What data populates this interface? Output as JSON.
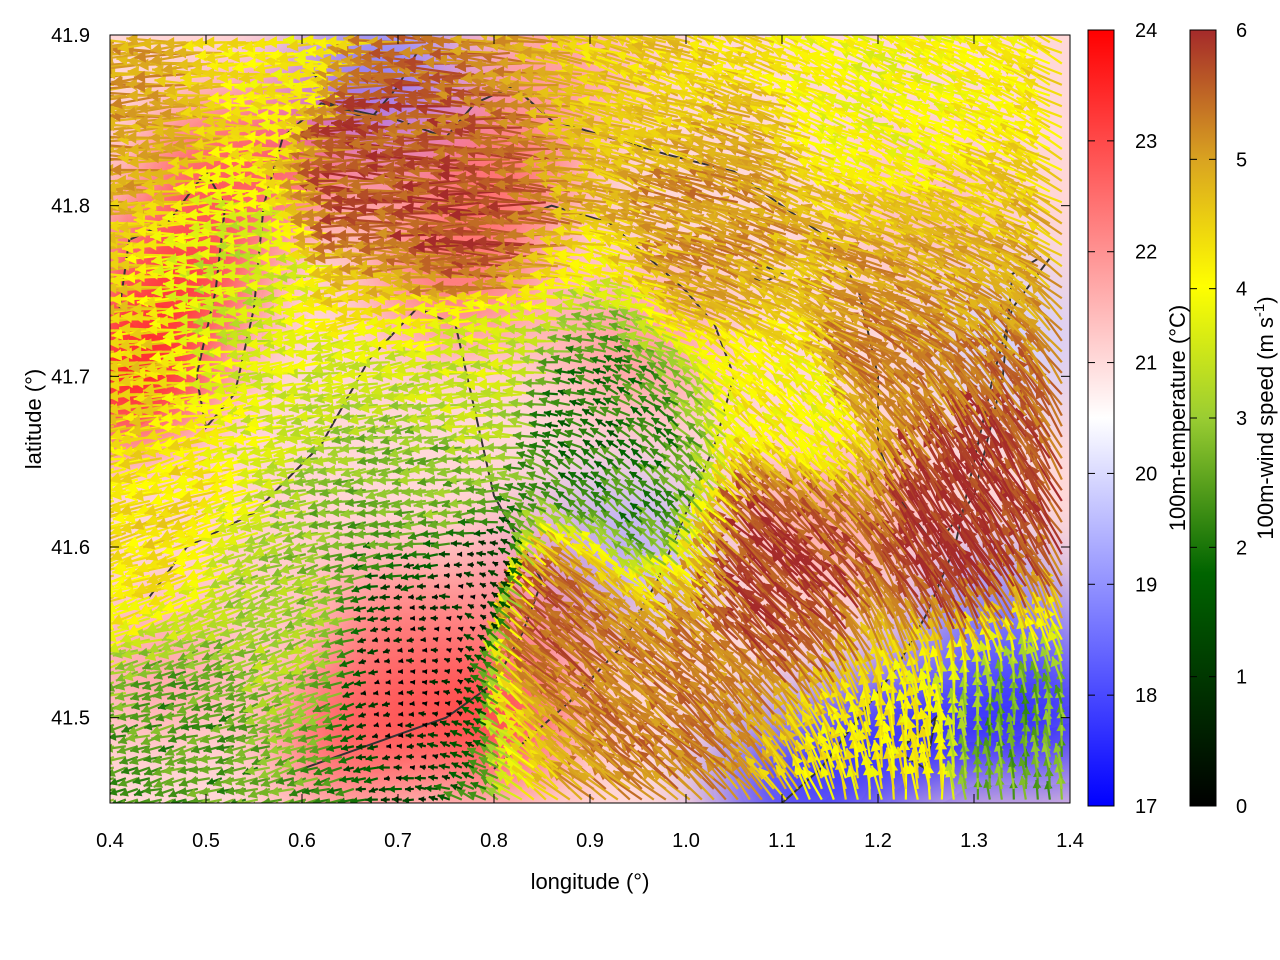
{
  "chart_data": {
    "type": "heatmap",
    "title": "",
    "xlabel": "longitude (°)",
    "ylabel": "latitude (°)",
    "xlim": [
      0.4,
      1.4
    ],
    "ylim": [
      41.45,
      41.9
    ],
    "xticks": [
      "0.4",
      "0.5",
      "0.6",
      "0.7",
      "0.8",
      "0.9",
      "1.0",
      "1.1",
      "1.2",
      "1.3",
      "1.4"
    ],
    "yticks": [
      "41.5",
      "41.6",
      "41.7",
      "41.8",
      "41.9"
    ],
    "grid": false,
    "colorbars": [
      {
        "label": "100m-temperature (°C)",
        "min": 17,
        "max": 24,
        "ticks": [
          "17",
          "18",
          "19",
          "20",
          "21",
          "22",
          "23",
          "24"
        ],
        "colors": [
          "#0000ff",
          "#ffffff",
          "#ff0000"
        ]
      },
      {
        "label_main": "100m-wind speed (m s",
        "label_sup": "-1",
        "label_end": ")",
        "min": 0,
        "max": 6,
        "ticks": [
          "0",
          "1",
          "2",
          "3",
          "4",
          "5",
          "6"
        ],
        "colors": [
          "#000000",
          "#006400",
          "#9acd32",
          "#ffff00",
          "#daa520",
          "#a52a2a"
        ]
      }
    ],
    "temperature_blobs": [
      {
        "lon": 0.42,
        "lat": 41.7,
        "value": 24
      },
      {
        "lon": 0.47,
        "lat": 41.76,
        "value": 23.6
      },
      {
        "lon": 0.52,
        "lat": 41.82,
        "value": 23
      },
      {
        "lon": 0.62,
        "lat": 41.84,
        "value": 22.8
      },
      {
        "lon": 0.8,
        "lat": 41.82,
        "value": 22.8
      },
      {
        "lon": 0.86,
        "lat": 41.88,
        "value": 22
      },
      {
        "lon": 0.76,
        "lat": 41.76,
        "value": 22.6
      },
      {
        "lon": 0.95,
        "lat": 41.72,
        "value": 22
      },
      {
        "lon": 0.7,
        "lat": 41.55,
        "value": 22.5
      },
      {
        "lon": 0.79,
        "lat": 41.5,
        "value": 23.4
      },
      {
        "lon": 0.66,
        "lat": 41.49,
        "value": 23
      },
      {
        "lon": 0.87,
        "lat": 41.58,
        "value": 22.5
      },
      {
        "lon": 1.15,
        "lat": 41.62,
        "value": 21.8
      },
      {
        "lon": 1.25,
        "lat": 41.8,
        "value": 21.5
      },
      {
        "lon": 0.68,
        "lat": 41.88,
        "value": 18.6
      },
      {
        "lon": 0.93,
        "lat": 41.6,
        "value": 19.4
      },
      {
        "lon": 1.33,
        "lat": 41.55,
        "value": 18.4
      },
      {
        "lon": 1.37,
        "lat": 41.5,
        "value": 17.2
      },
      {
        "lon": 1.23,
        "lat": 41.49,
        "value": 17.2
      },
      {
        "lon": 1.12,
        "lat": 41.46,
        "value": 17.5
      },
      {
        "lon": 1.35,
        "lat": 41.72,
        "value": 19.8
      },
      {
        "lon": 0.55,
        "lat": 41.6,
        "value": 21.2
      },
      {
        "lon": 0.45,
        "lat": 41.53,
        "value": 21.8
      }
    ],
    "wind_speed_regions": [
      {
        "lon": 0.72,
        "lat": 41.53,
        "value": 0.1
      },
      {
        "lon": 0.78,
        "lat": 41.58,
        "value": 0.3
      },
      {
        "lon": 0.9,
        "lat": 41.67,
        "value": 1.3
      },
      {
        "lon": 0.95,
        "lat": 41.64,
        "value": 1.6
      },
      {
        "lon": 0.6,
        "lat": 41.55,
        "value": 2.5
      },
      {
        "lon": 0.5,
        "lat": 41.48,
        "value": 1.8
      },
      {
        "lon": 0.8,
        "lat": 41.7,
        "value": 3
      },
      {
        "lon": 0.75,
        "lat": 41.63,
        "value": 2.2
      },
      {
        "lon": 0.45,
        "lat": 41.62,
        "value": 4
      },
      {
        "lon": 0.55,
        "lat": 41.76,
        "value": 3
      },
      {
        "lon": 0.7,
        "lat": 41.83,
        "value": 5.6
      },
      {
        "lon": 0.8,
        "lat": 41.79,
        "value": 5.7
      },
      {
        "lon": 0.6,
        "lat": 41.88,
        "value": 3.8
      },
      {
        "lon": 0.45,
        "lat": 41.85,
        "value": 4.8
      },
      {
        "lon": 1.0,
        "lat": 41.88,
        "value": 4.2
      },
      {
        "lon": 1.2,
        "lat": 41.88,
        "value": 3.5
      },
      {
        "lon": 1.05,
        "lat": 41.79,
        "value": 5
      },
      {
        "lon": 1.2,
        "lat": 41.7,
        "value": 5.2
      },
      {
        "lon": 1.3,
        "lat": 41.6,
        "value": 6
      },
      {
        "lon": 1.12,
        "lat": 41.58,
        "value": 5.8
      },
      {
        "lon": 0.88,
        "lat": 41.55,
        "value": 5.5
      },
      {
        "lon": 0.98,
        "lat": 41.5,
        "value": 5.2
      },
      {
        "lon": 1.34,
        "lat": 41.48,
        "value": 2
      },
      {
        "lon": 1.22,
        "lat": 41.46,
        "value": 3.8
      },
      {
        "lon": 1.15,
        "lat": 41.68,
        "value": 3.5
      },
      {
        "lon": 0.42,
        "lat": 41.72,
        "value": 4.2
      }
    ],
    "wind_direction_zones": [
      {
        "lon": 0.5,
        "lat": 41.8,
        "angle_deg": 182
      },
      {
        "lon": 0.8,
        "lat": 41.82,
        "angle_deg": 178
      },
      {
        "lon": 1.0,
        "lat": 41.85,
        "angle_deg": 162
      },
      {
        "lon": 1.2,
        "lat": 41.8,
        "angle_deg": 158
      },
      {
        "lon": 1.3,
        "lat": 41.6,
        "angle_deg": 122
      },
      {
        "lon": 1.1,
        "lat": 41.6,
        "angle_deg": 135
      },
      {
        "lon": 0.9,
        "lat": 41.55,
        "angle_deg": 140
      },
      {
        "lon": 0.7,
        "lat": 41.65,
        "angle_deg": 190
      },
      {
        "lon": 0.55,
        "lat": 41.55,
        "angle_deg": 200
      },
      {
        "lon": 1.3,
        "lat": 41.48,
        "angle_deg": 95
      },
      {
        "lon": 0.45,
        "lat": 41.48,
        "angle_deg": 195
      }
    ],
    "contours": [
      [
        [
          0.41,
          41.74
        ],
        [
          0.42,
          41.78
        ],
        [
          0.46,
          41.79
        ],
        [
          0.5,
          41.82
        ],
        [
          0.52,
          41.8
        ],
        [
          0.51,
          41.75
        ],
        [
          0.49,
          41.7
        ],
        [
          0.5,
          41.67
        ],
        [
          0.53,
          41.69
        ],
        [
          0.55,
          41.74
        ],
        [
          0.56,
          41.8
        ],
        [
          0.58,
          41.84
        ],
        [
          0.62,
          41.86
        ],
        [
          0.7,
          41.85
        ],
        [
          0.75,
          41.84
        ],
        [
          0.78,
          41.86
        ],
        [
          0.82,
          41.87
        ],
        [
          0.86,
          41.85
        ],
        [
          0.92,
          41.84
        ],
        [
          0.98,
          41.83
        ],
        [
          1.05,
          41.82
        ],
        [
          1.1,
          41.8
        ],
        [
          1.15,
          41.78
        ],
        [
          1.18,
          41.75
        ],
        [
          1.2,
          41.7
        ],
        [
          1.2,
          41.66
        ],
        [
          1.22,
          41.63
        ],
        [
          1.26,
          41.6
        ],
        [
          1.3,
          41.63
        ],
        [
          1.33,
          41.7
        ],
        [
          1.34,
          41.76
        ],
        [
          1.37,
          41.77
        ]
      ],
      [
        [
          0.44,
          41.57
        ],
        [
          0.48,
          41.6
        ],
        [
          0.55,
          41.62
        ],
        [
          0.62,
          41.66
        ],
        [
          0.67,
          41.71
        ],
        [
          0.72,
          41.74
        ],
        [
          0.76,
          41.73
        ],
        [
          0.78,
          41.68
        ],
        [
          0.8,
          41.63
        ],
        [
          0.83,
          41.6
        ],
        [
          0.85,
          41.58
        ],
        [
          0.83,
          41.55
        ],
        [
          0.8,
          41.52
        ],
        [
          0.75,
          41.5
        ],
        [
          0.7,
          41.49
        ],
        [
          0.65,
          41.48
        ],
        [
          0.6,
          41.47
        ]
      ],
      [
        [
          0.81,
          41.79
        ],
        [
          0.86,
          41.8
        ],
        [
          0.92,
          41.79
        ],
        [
          0.96,
          41.77
        ],
        [
          1.0,
          41.75
        ],
        [
          1.03,
          41.73
        ],
        [
          1.05,
          41.7
        ],
        [
          1.03,
          41.66
        ],
        [
          1.0,
          41.62
        ],
        [
          0.97,
          41.58
        ],
        [
          0.93,
          41.54
        ],
        [
          0.88,
          41.51
        ],
        [
          0.84,
          41.49
        ],
        [
          0.8,
          41.47
        ]
      ],
      [
        [
          1.38,
          41.77
        ],
        [
          1.34,
          41.74
        ],
        [
          1.32,
          41.7
        ],
        [
          1.3,
          41.65
        ],
        [
          1.28,
          41.6
        ],
        [
          1.25,
          41.56
        ],
        [
          1.22,
          41.53
        ],
        [
          1.18,
          41.5
        ],
        [
          1.14,
          41.47
        ],
        [
          1.1,
          41.45
        ]
      ],
      [
        [
          0.61,
          41.88
        ],
        [
          0.63,
          41.86
        ],
        [
          0.67,
          41.85
        ],
        [
          0.7,
          41.87
        ],
        [
          0.72,
          41.89
        ]
      ],
      [
        [
          1.06,
          41.76
        ],
        [
          1.08,
          41.765
        ],
        [
          1.1,
          41.76
        ],
        [
          1.08,
          41.755
        ],
        [
          1.06,
          41.76
        ]
      ],
      [
        [
          1.22,
          41.48
        ],
        [
          1.24,
          41.49
        ],
        [
          1.26,
          41.5
        ],
        [
          1.25,
          41.47
        ],
        [
          1.22,
          41.48
        ]
      ]
    ]
  }
}
